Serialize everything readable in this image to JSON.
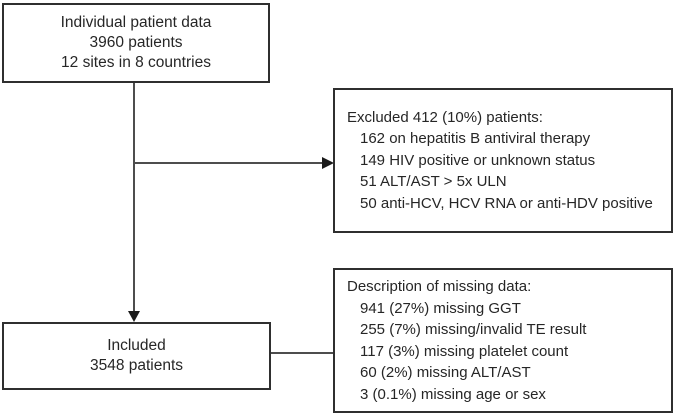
{
  "diagram": {
    "type": "patient-flowchart",
    "colors": {
      "border": "#2f2f2f",
      "text": "#262626",
      "line": "#4d4d4d",
      "arrow": "#1a1a1a",
      "background": "#ffffff"
    },
    "boxes": {
      "source": {
        "lines": [
          "Individual patient data",
          "3960 patients",
          "12 sites in 8 countries"
        ]
      },
      "excluded": {
        "title": "Excluded 412 (10%) patients:",
        "items": [
          "162 on hepatitis B antiviral therapy",
          "149 HIV positive or unknown status",
          "51 ALT/AST > 5x ULN",
          "50 anti-HCV, HCV RNA or anti-HDV positive"
        ]
      },
      "missing": {
        "title": "Description of missing data:",
        "items": [
          "941 (27%) missing GGT",
          "255 (7%) missing/invalid TE result",
          "117 (3%) missing platelet count",
          "60 (2%) missing ALT/AST",
          "3 (0.1%) missing age or sex"
        ]
      },
      "included": {
        "lines": [
          "Included",
          "3548 patients"
        ]
      }
    },
    "connections": [
      {
        "from": "source",
        "to": "included",
        "style": "arrow"
      },
      {
        "from": "source",
        "to": "excluded",
        "style": "arrow"
      },
      {
        "from": "included",
        "to": "missing",
        "style": "line"
      }
    ]
  }
}
